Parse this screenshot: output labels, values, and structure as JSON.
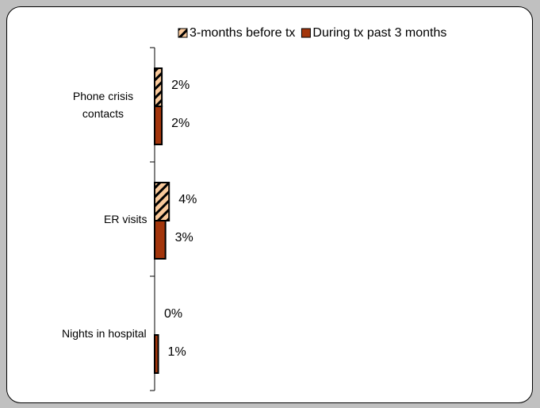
{
  "chart_data": {
    "type": "barh",
    "categories": [
      "Phone crisis contacts",
      "ER visits",
      "Nights in hospital"
    ],
    "series": [
      {
        "name": "3-months before tx",
        "color": "#f9c99b",
        "hatch": true,
        "values": [
          2,
          4,
          0
        ],
        "value_labels": [
          "2%",
          "4%",
          "0%"
        ]
      },
      {
        "name": "During tx past 3 months",
        "color": "#a3360c",
        "hatch": false,
        "values": [
          2,
          3,
          1
        ],
        "value_labels": [
          "2%",
          "3%",
          "1%"
        ]
      }
    ],
    "xlim": [
      0,
      100
    ],
    "legend": "top"
  }
}
